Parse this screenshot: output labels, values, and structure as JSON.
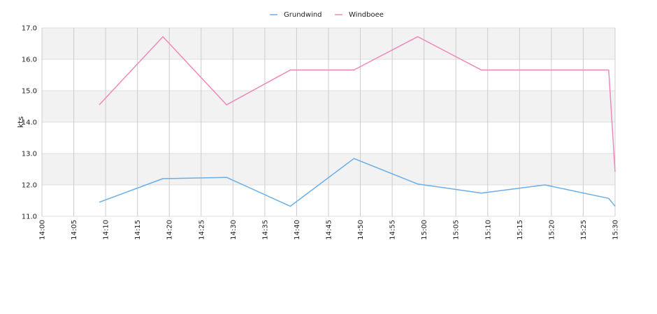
{
  "chart_data": {
    "type": "line",
    "title": "",
    "xlabel": "",
    "ylabel": "kts",
    "ylim": [
      11.0,
      17.0
    ],
    "y_ticks": [
      "11.0",
      "12.0",
      "13.0",
      "14.0",
      "15.0",
      "16.0",
      "17.0"
    ],
    "x_range": [
      "14:00",
      "15:30"
    ],
    "x_ticks": [
      "14:00",
      "14:05",
      "14:10",
      "14:15",
      "14:20",
      "14:25",
      "14:30",
      "14:35",
      "14:40",
      "14:45",
      "14:50",
      "14:55",
      "15:00",
      "15:05",
      "15:10",
      "15:15",
      "15:20",
      "15:25",
      "15:30"
    ],
    "grid": true,
    "legend_position": "top-center",
    "series": [
      {
        "name": "Grundwind",
        "color": "#6aaee8",
        "points": [
          {
            "x": "14:09",
            "y": 11.45
          },
          {
            "x": "14:19",
            "y": 12.2
          },
          {
            "x": "14:29",
            "y": 12.24
          },
          {
            "x": "14:39",
            "y": 11.32
          },
          {
            "x": "14:49",
            "y": 12.84
          },
          {
            "x": "14:59",
            "y": 12.03
          },
          {
            "x": "15:09",
            "y": 11.74
          },
          {
            "x": "15:19",
            "y": 12.0
          },
          {
            "x": "15:29",
            "y": 11.57
          },
          {
            "x": "15:30",
            "y": 11.32
          }
        ]
      },
      {
        "name": "Windboee",
        "color": "#ee88bb",
        "points": [
          {
            "x": "14:09",
            "y": 14.55
          },
          {
            "x": "14:19",
            "y": 16.72
          },
          {
            "x": "14:29",
            "y": 14.55
          },
          {
            "x": "14:39",
            "y": 15.66
          },
          {
            "x": "14:49",
            "y": 15.66
          },
          {
            "x": "14:59",
            "y": 16.72
          },
          {
            "x": "15:09",
            "y": 15.66
          },
          {
            "x": "15:19",
            "y": 15.66
          },
          {
            "x": "15:29",
            "y": 15.66
          },
          {
            "x": "15:30",
            "y": 12.42
          }
        ]
      }
    ]
  }
}
